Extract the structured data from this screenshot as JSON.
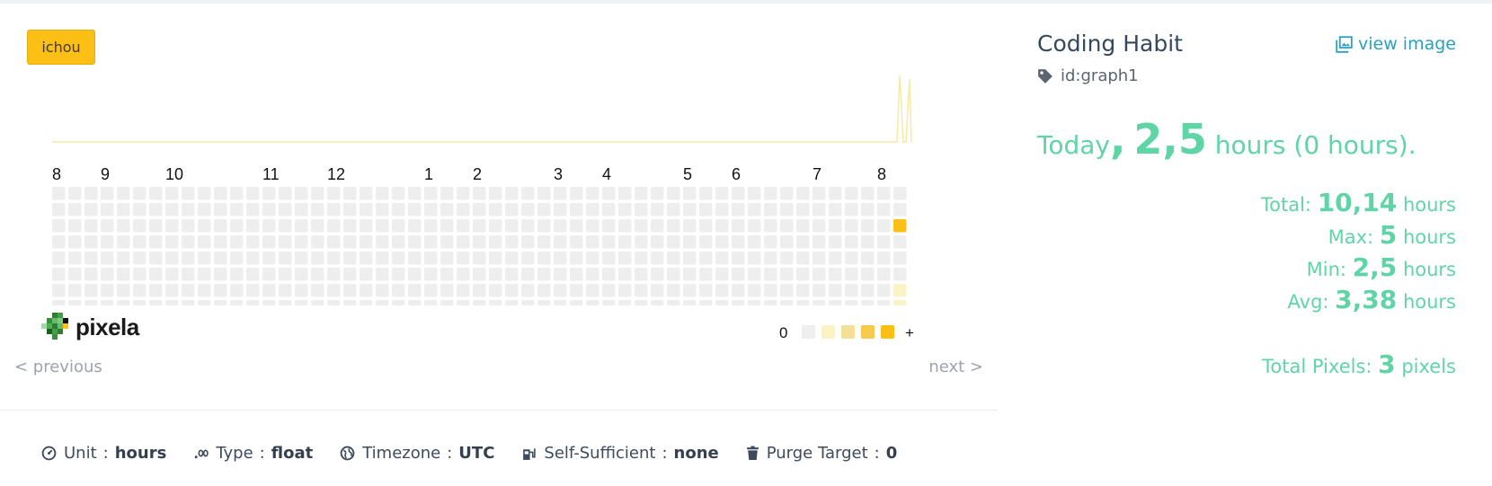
{
  "user": {
    "name": "ichou"
  },
  "graph": {
    "title": "Coding Habit",
    "id_label": "id:graph1",
    "view_image_label": "view image",
    "months": [
      "8",
      "9",
      "10",
      "11",
      "12",
      "1",
      "2",
      "3",
      "4",
      "5",
      "6",
      "7",
      "8"
    ],
    "highlight_color": "#fbbf16",
    "empty_color": "#eeeeee",
    "legend": {
      "min_label": "0",
      "max_label": "+",
      "colors": [
        "#eeeeee",
        "#fbf3c5",
        "#f3df95",
        "#f7ca4b",
        "#fbbf16"
      ]
    },
    "pixels": [
      {
        "week": 52,
        "day": 2,
        "level": 4
      },
      {
        "week": 52,
        "day": 6,
        "level": 1
      },
      {
        "week": 52,
        "day": 7,
        "level": 1
      }
    ]
  },
  "nav": {
    "previous": "< previous",
    "next": "next >"
  },
  "summary": {
    "today_prefix": "Today",
    "today_comma": ",",
    "today_value": "2,5",
    "today_suffix": "hours (0 hours).",
    "total_label": "Total:",
    "total_value": "10,14",
    "total_unit": "hours",
    "max_label": "Max:",
    "max_value": "5",
    "max_unit": "hours",
    "min_label": "Min:",
    "min_value": "2,5",
    "min_unit": "hours",
    "avg_label": "Avg:",
    "avg_value": "3,38",
    "avg_unit": "hours",
    "pixels_label": "Total Pixels:",
    "pixels_value": "3",
    "pixels_unit": "pixels"
  },
  "meta": {
    "unit_label": "Unit",
    "unit_value": "hours",
    "type_label": "Type",
    "type_value": "float",
    "timezone_label": "Timezone",
    "timezone_value": "UTC",
    "self_label": "Self-Sufficient",
    "self_value": "none",
    "purge_label": "Purge Target",
    "purge_value": "0",
    "separator": ":"
  },
  "logo": {
    "text": "pixela"
  }
}
